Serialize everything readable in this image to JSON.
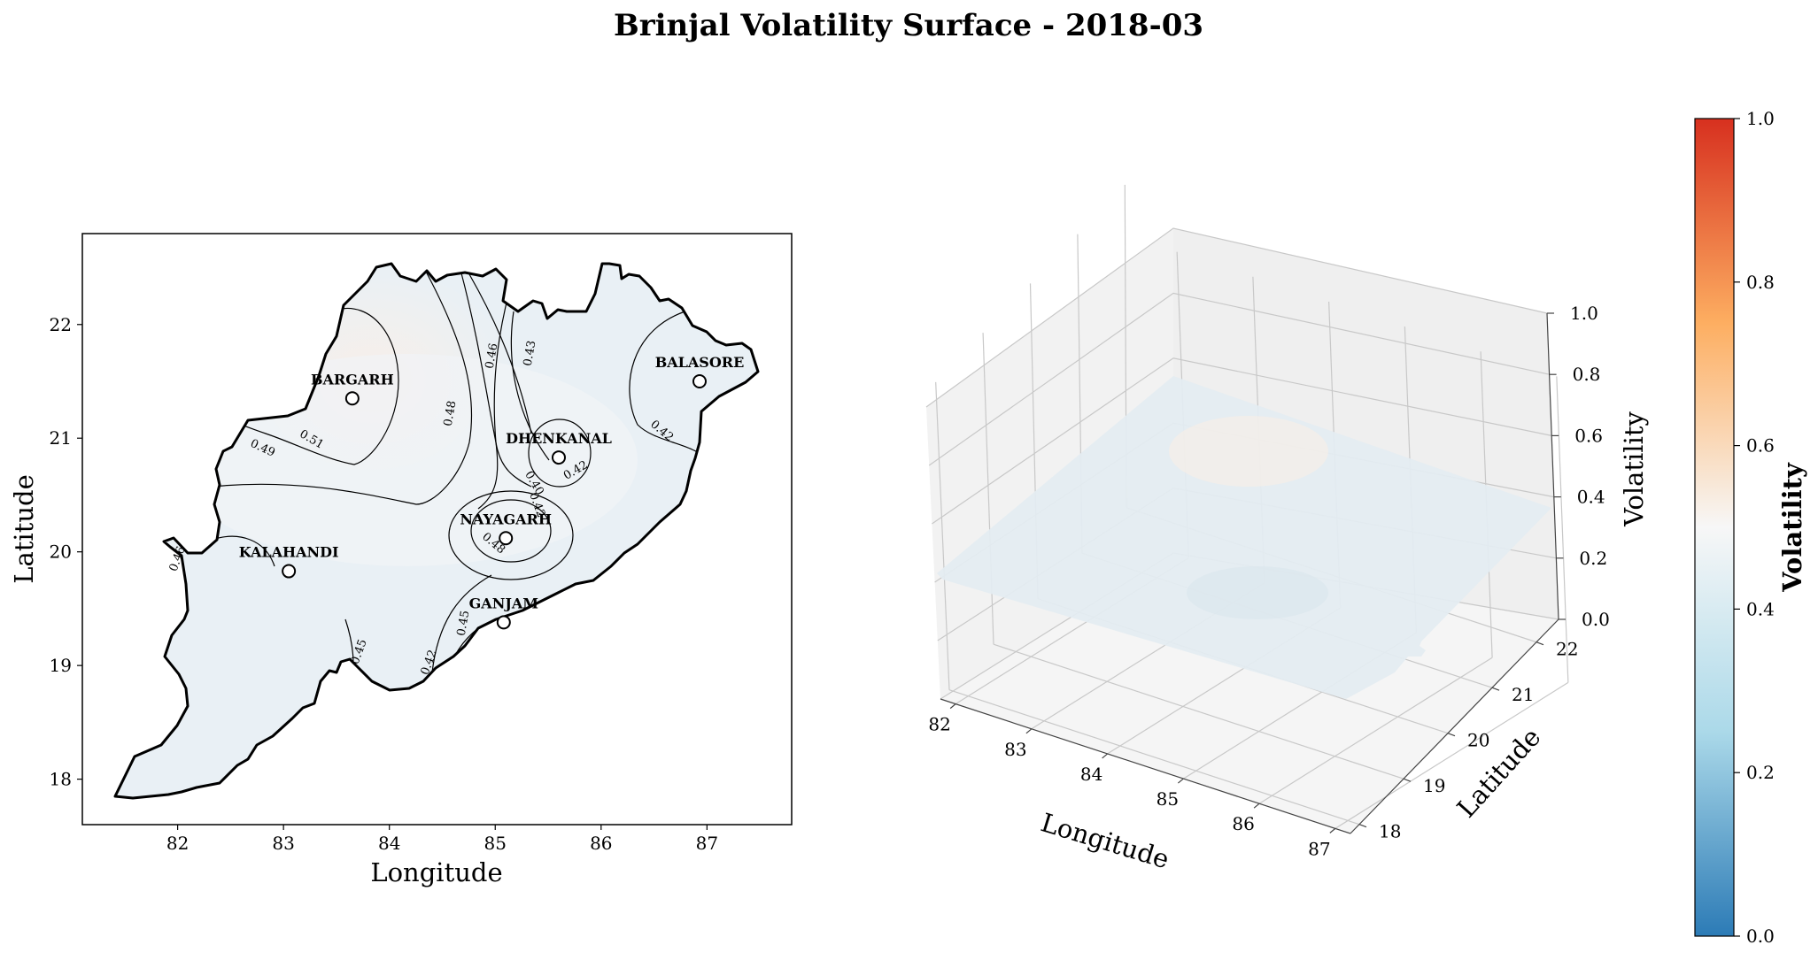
{
  "title": "Brinjal Volatility Surface - 2018-03",
  "chart_data": [
    {
      "type": "contour",
      "xlabel": "Longitude",
      "ylabel": "Latitude",
      "xlim": [
        81.1,
        87.8
      ],
      "ylim": [
        17.6,
        22.8
      ],
      "xticks": [
        82,
        83,
        84,
        85,
        86,
        87
      ],
      "yticks": [
        18,
        19,
        20,
        21,
        22
      ],
      "contour_levels": [
        "0.51",
        "0.49",
        "0.48",
        "0.46",
        "0.43",
        "0.42",
        "0.42",
        "0.42",
        "0.46",
        "0.48",
        "0.45",
        "0.45",
        "0.42",
        "0.40"
      ],
      "sites": [
        {
          "name": "BARGARH",
          "lon": 83.65,
          "lat": 21.35,
          "volatility": 0.53
        },
        {
          "name": "BALASORE",
          "lon": 86.93,
          "lat": 21.5,
          "volatility": 0.41
        },
        {
          "name": "DHENKANAL",
          "lon": 85.6,
          "lat": 20.83,
          "volatility": 0.4
        },
        {
          "name": "NAYAGARH",
          "lon": 85.1,
          "lat": 20.12,
          "volatility": 0.5
        },
        {
          "name": "KALAHANDI",
          "lon": 83.05,
          "lat": 19.83,
          "volatility": 0.44
        },
        {
          "name": "GANJAM",
          "lon": 85.08,
          "lat": 19.38,
          "volatility": 0.39
        }
      ]
    },
    {
      "type": "surface",
      "xlabel": "Longitude",
      "ylabel": "Latitude",
      "zlabel": "Volatility",
      "xlim": [
        81.8,
        87.2
      ],
      "ylim": [
        17.8,
        22.5
      ],
      "zlim": [
        0,
        1
      ],
      "xticks": [
        82,
        83,
        84,
        85,
        86,
        87
      ],
      "yticks": [
        18,
        19,
        20,
        21,
        22
      ],
      "zticks": [
        "0.0",
        "0.2",
        "0.4",
        "0.6",
        "0.8",
        "1.0"
      ]
    },
    {
      "type": "colorbar",
      "label": "Volatility",
      "range": [
        0,
        1
      ],
      "ticks": [
        "0.0",
        "0.2",
        "0.4",
        "0.6",
        "0.8",
        "1.0"
      ],
      "colors": [
        "#2c7bb6",
        "#abd9e9",
        "#f7f7f7",
        "#fdae61",
        "#d7301f"
      ]
    }
  ]
}
